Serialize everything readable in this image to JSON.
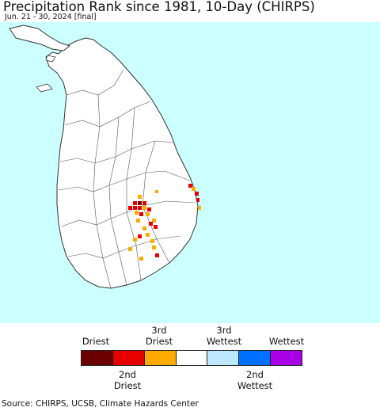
{
  "header": {
    "title": "Precipitation Rank since 1981, 10-Day (CHIRPS)",
    "subtitle": "Jun. 21 - 30, 2024 [final]"
  },
  "map": {
    "ocean_color": "#ccffff",
    "land_color": "#ffffff",
    "boundary_color": "#555555"
  },
  "legend": {
    "upper_labels": [
      {
        "text": "Driest",
        "line2": ""
      },
      {
        "text": "3rd",
        "line2": "Driest"
      },
      {
        "text": "3rd",
        "line2": "Wettest"
      },
      {
        "text": "Wettest",
        "line2": ""
      }
    ],
    "lower_labels": [
      {
        "text": "2nd",
        "line2": "Driest"
      },
      {
        "text": "2nd",
        "line2": "Wettest"
      }
    ],
    "swatches": [
      "#6b0000",
      "#e60000",
      "#ffaa00",
      "#ffffff",
      "#bee8ff",
      "#0070ff",
      "#aa00e6"
    ]
  },
  "footer": {
    "source": "Source: CHIRPS, UCSB, Climate Hazards Center"
  }
}
